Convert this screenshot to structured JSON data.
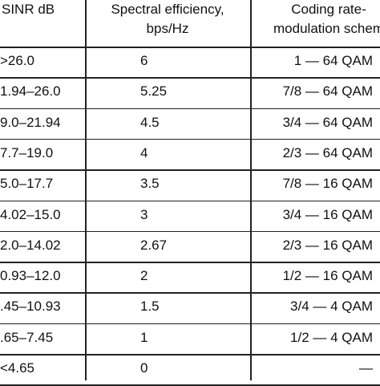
{
  "table": {
    "header": [
      [
        "SINR dB"
      ],
      [
        "Spectral efficiency,",
        "bps/Hz"
      ],
      [
        "Coding rate-",
        "modulation schem"
      ]
    ],
    "rows": [
      [
        ">26.0",
        "6",
        "1 — 64 QAM"
      ],
      [
        "1.94–26.0",
        "5.25",
        "7/8 — 64 QAM"
      ],
      [
        "9.0–21.94",
        "4.5",
        "3/4 — 64 QAM"
      ],
      [
        "7.7–19.0",
        "4",
        "2/3 — 64 QAM"
      ],
      [
        "5.0–17.7",
        "3.5",
        "7/8 — 16 QAM"
      ],
      [
        "4.02–15.0",
        "3",
        "3/4 — 16 QAM"
      ],
      [
        "2.0–14.02",
        "2.67",
        "2/3 — 16 QAM"
      ],
      [
        "0.93–12.0",
        "2",
        "1/2 — 16 QAM"
      ],
      [
        ".45–10.93",
        "1.5",
        "3/4 — 4 QAM"
      ],
      [
        ".65–7.45",
        "1",
        "1/2 — 4 QAM"
      ],
      [
        "<4.65",
        "0",
        "—"
      ]
    ]
  }
}
